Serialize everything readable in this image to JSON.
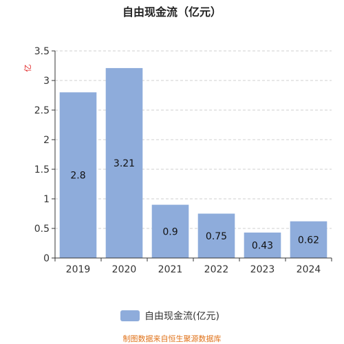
{
  "chart_data": {
    "type": "bar",
    "title": "自由现金流（亿元）",
    "ylabel": "亿",
    "xlabel": "",
    "categories": [
      "2019",
      "2020",
      "2021",
      "2022",
      "2023",
      "2024"
    ],
    "series": [
      {
        "name": "自由现金流(亿元)",
        "values": [
          2.8,
          3.21,
          0.9,
          0.75,
          0.43,
          0.62
        ],
        "labels": [
          "2.8",
          "3.21",
          "0.9",
          "0.75",
          "0.43",
          "0.62"
        ]
      }
    ],
    "ylim": [
      0,
      3.5
    ],
    "yticks": [
      0,
      0.5,
      1,
      1.5,
      2,
      2.5,
      3,
      3.5
    ],
    "ytick_labels": [
      "0",
      "0.5",
      "1",
      "1.5",
      "2",
      "2.5",
      "3",
      "3.5"
    ],
    "grid": true,
    "legend_position": "bottom-center",
    "colors": {
      "bar": "#8eacdb",
      "unit_label": "#e02020",
      "source": "#e0731b",
      "grid": "#cfcfcf",
      "axis": "#333333"
    }
  },
  "footer": {
    "source": "制图数据来自恒生聚源数据库"
  }
}
